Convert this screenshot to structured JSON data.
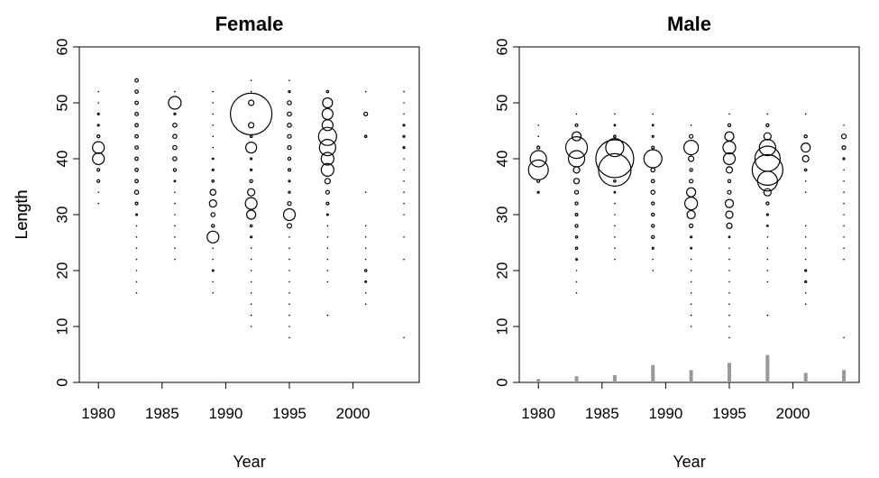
{
  "chart_data": [
    {
      "type": "scatter",
      "subtype": "bubble",
      "title": "Female",
      "xlabel": "Year",
      "ylabel": "Length",
      "xlim": [
        1978.5,
        2005.2
      ],
      "ylim": [
        0,
        60
      ],
      "xticks": [
        1980,
        1985,
        1990,
        1995,
        2000
      ],
      "yticks": [
        0,
        10,
        20,
        30,
        40,
        50,
        60
      ],
      "grid": false,
      "legend": "none",
      "colors": {
        "bubble_stroke": "#000000",
        "bar_fill": "#999999"
      },
      "series": [
        {
          "x": 1980,
          "lengths": [
            32,
            34,
            36,
            38,
            40,
            42,
            44,
            46,
            48,
            50,
            52
          ],
          "r": [
            0.6,
            0.6,
            1.5,
            1.5,
            6.5,
            6.5,
            1.6,
            1.0,
            1.0,
            0.6,
            0.6
          ]
        },
        {
          "x": 1983,
          "lengths": [
            16,
            18,
            20,
            22,
            24,
            26,
            28,
            30,
            32,
            34,
            36,
            38,
            40,
            42,
            44,
            46,
            48,
            50,
            52,
            54
          ],
          "r": [
            0.5,
            0.5,
            0.5,
            0.5,
            0.5,
            0.5,
            0.6,
            0.9,
            1.5,
            2.2,
            1.8,
            1.8,
            1.8,
            1.8,
            1.8,
            1.8,
            1.8,
            1.8,
            1.8,
            1.8
          ]
        },
        {
          "x": 1986,
          "lengths": [
            22,
            24,
            26,
            28,
            30,
            32,
            34,
            36,
            38,
            40,
            42,
            44,
            46,
            48,
            50,
            52
          ],
          "r": [
            0.5,
            0.5,
            0.5,
            0.5,
            0.5,
            0.5,
            0.6,
            0.8,
            1.6,
            2.2,
            2.2,
            2.2,
            2.2,
            1.0,
            7.0,
            0.6
          ]
        },
        {
          "x": 1989,
          "lengths": [
            16,
            18,
            20,
            22,
            24,
            26,
            28,
            30,
            32,
            34,
            36,
            38,
            40,
            42,
            44,
            46,
            48,
            50,
            52
          ],
          "r": [
            0.5,
            0.5,
            0.9,
            0.5,
            0.5,
            6.5,
            1.6,
            2.2,
            4.0,
            3.2,
            1.2,
            1.0,
            0.8,
            0.5,
            0.5,
            0.5,
            0.5,
            0.5,
            0.5
          ]
        },
        {
          "x": 1992,
          "lengths": [
            10,
            12,
            14,
            16,
            18,
            20,
            22,
            24,
            26,
            28,
            30,
            32,
            34,
            36,
            38,
            40,
            42,
            44,
            46,
            48,
            50,
            52,
            54
          ],
          "r": [
            0.5,
            0.5,
            0.5,
            0.5,
            0.5,
            0.5,
            0.5,
            0.5,
            1.0,
            1.2,
            5.0,
            6.5,
            4.0,
            1.6,
            1.0,
            1.0,
            6.0,
            1.2,
            3.0,
            23.0,
            3.0,
            0.6,
            0.5
          ]
        },
        {
          "x": 1995,
          "lengths": [
            8,
            10,
            12,
            14,
            16,
            18,
            20,
            22,
            24,
            26,
            28,
            30,
            32,
            34,
            36,
            38,
            40,
            42,
            44,
            46,
            48,
            50,
            52,
            54
          ],
          "r": [
            0.5,
            0.5,
            0.5,
            0.5,
            0.5,
            0.5,
            0.5,
            0.5,
            0.5,
            0.5,
            2.5,
            6.5,
            2.0,
            1.0,
            1.0,
            1.4,
            1.6,
            2.0,
            2.0,
            2.2,
            2.2,
            2.2,
            1.0,
            0.6
          ]
        },
        {
          "x": 1998,
          "lengths": [
            12,
            18,
            20,
            22,
            24,
            26,
            28,
            30,
            32,
            34,
            36,
            38,
            40,
            42,
            44,
            46,
            48,
            50,
            52
          ],
          "r": [
            0.5,
            0.5,
            0.5,
            0.5,
            0.5,
            0.5,
            0.6,
            0.9,
            1.4,
            2.0,
            3.0,
            7.0,
            7.0,
            9.0,
            10.0,
            6.0,
            6.0,
            5.5,
            1.2
          ]
        },
        {
          "x": 2001,
          "lengths": [
            14,
            16,
            18,
            20,
            22,
            24,
            26,
            28,
            34,
            44,
            48,
            52
          ],
          "r": [
            0.5,
            0.5,
            0.9,
            1.2,
            0.5,
            0.5,
            0.5,
            0.5,
            0.6,
            1.2,
            2.0,
            0.6
          ]
        },
        {
          "x": 2004,
          "lengths": [
            8,
            22,
            26,
            30,
            32,
            34,
            36,
            38,
            40,
            42,
            44,
            46,
            48,
            50,
            52
          ],
          "r": [
            0.5,
            0.5,
            0.5,
            0.5,
            0.5,
            0.5,
            0.5,
            0.5,
            0.6,
            1.0,
            1.0,
            1.0,
            0.7,
            0.6,
            0.5
          ]
        }
      ]
    },
    {
      "type": "scatter",
      "subtype": "bubble",
      "title": "Male",
      "xlabel": "Year",
      "ylabel": "Length",
      "xlim": [
        1978.5,
        2005.2
      ],
      "ylim": [
        0,
        60
      ],
      "xticks": [
        1980,
        1985,
        1990,
        1995,
        2000
      ],
      "yticks": [
        0,
        10,
        20,
        30,
        40,
        50,
        60
      ],
      "grid": false,
      "legend": "none",
      "colors": {
        "bubble_stroke": "#000000",
        "bar_fill": "#999999"
      },
      "bars": [
        {
          "x": 1980,
          "value": 0.6
        },
        {
          "x": 1983,
          "value": 1.1
        },
        {
          "x": 1986,
          "value": 1.3
        },
        {
          "x": 1989,
          "value": 3.1
        },
        {
          "x": 1992,
          "value": 2.2
        },
        {
          "x": 1995,
          "value": 3.5
        },
        {
          "x": 1998,
          "value": 4.9
        },
        {
          "x": 2001,
          "value": 1.7
        },
        {
          "x": 2004,
          "value": 2.2
        }
      ],
      "series": [
        {
          "x": 1980,
          "lengths": [
            34,
            36,
            38,
            40,
            42,
            44,
            46
          ],
          "r": [
            1.0,
            1.5,
            11.0,
            9.0,
            1.6,
            0.6,
            0.5
          ]
        },
        {
          "x": 1983,
          "lengths": [
            16,
            18,
            20,
            22,
            24,
            26,
            28,
            30,
            32,
            34,
            36,
            38,
            40,
            42,
            44,
            46,
            48
          ],
          "r": [
            0.5,
            0.5,
            0.5,
            0.9,
            1.2,
            1.2,
            1.6,
            1.4,
            1.6,
            2.0,
            3.0,
            3.5,
            9.0,
            12.0,
            5.0,
            1.5,
            0.7
          ]
        },
        {
          "x": 1986,
          "lengths": [
            22,
            24,
            26,
            28,
            30,
            32,
            34,
            36,
            38,
            40,
            42,
            44,
            46,
            48
          ],
          "r": [
            0.5,
            0.5,
            0.5,
            0.5,
            0.5,
            0.6,
            0.8,
            1.2,
            18.0,
            21.0,
            10.0,
            1.2,
            0.8,
            0.5
          ]
        },
        {
          "x": 1989,
          "lengths": [
            20,
            22,
            24,
            26,
            28,
            30,
            32,
            34,
            36,
            38,
            40,
            42,
            44,
            46,
            48
          ],
          "r": [
            0.5,
            0.5,
            1.0,
            1.6,
            1.6,
            1.6,
            1.6,
            2.2,
            1.8,
            2.2,
            10.0,
            1.4,
            1.0,
            0.8,
            0.6
          ]
        },
        {
          "x": 1992,
          "lengths": [
            10,
            12,
            14,
            16,
            18,
            20,
            22,
            24,
            26,
            28,
            30,
            32,
            34,
            36,
            38,
            40,
            42,
            44,
            46
          ],
          "r": [
            0.5,
            0.5,
            0.5,
            0.5,
            0.5,
            0.5,
            0.5,
            0.8,
            1.0,
            2.0,
            4.5,
            7.0,
            5.0,
            2.0,
            1.6,
            3.0,
            8.0,
            2.0,
            0.6
          ]
        },
        {
          "x": 1995,
          "lengths": [
            8,
            10,
            12,
            14,
            16,
            18,
            20,
            22,
            24,
            26,
            28,
            30,
            32,
            34,
            36,
            38,
            40,
            42,
            44,
            46,
            48
          ],
          "r": [
            0.5,
            0.5,
            0.5,
            0.5,
            0.5,
            0.5,
            0.5,
            0.5,
            0.5,
            0.8,
            3.0,
            4.0,
            4.5,
            2.0,
            1.6,
            3.5,
            6.5,
            7.0,
            5.0,
            1.6,
            0.6
          ]
        },
        {
          "x": 1998,
          "lengths": [
            12,
            18,
            20,
            22,
            24,
            26,
            28,
            30,
            32,
            34,
            36,
            38,
            40,
            42,
            44,
            46,
            48
          ],
          "r": [
            0.5,
            0.5,
            0.5,
            0.5,
            0.5,
            0.5,
            0.8,
            1.0,
            1.6,
            4.0,
            11.0,
            17.0,
            14.0,
            9.0,
            4.0,
            1.6,
            0.7
          ]
        },
        {
          "x": 2001,
          "lengths": [
            14,
            16,
            18,
            20,
            22,
            24,
            26,
            28,
            34,
            36,
            38,
            40,
            42,
            44,
            48
          ],
          "r": [
            0.5,
            0.5,
            1.0,
            1.0,
            0.6,
            0.5,
            0.5,
            0.5,
            0.6,
            0.6,
            1.2,
            3.5,
            5.0,
            1.6,
            0.6
          ]
        },
        {
          "x": 2004,
          "lengths": [
            8,
            22,
            24,
            26,
            28,
            30,
            32,
            34,
            36,
            38,
            40,
            42,
            44,
            46
          ],
          "r": [
            0.5,
            0.5,
            0.5,
            0.5,
            0.5,
            0.5,
            0.5,
            0.5,
            0.6,
            0.6,
            1.0,
            2.0,
            2.5,
            0.6
          ]
        }
      ]
    }
  ]
}
